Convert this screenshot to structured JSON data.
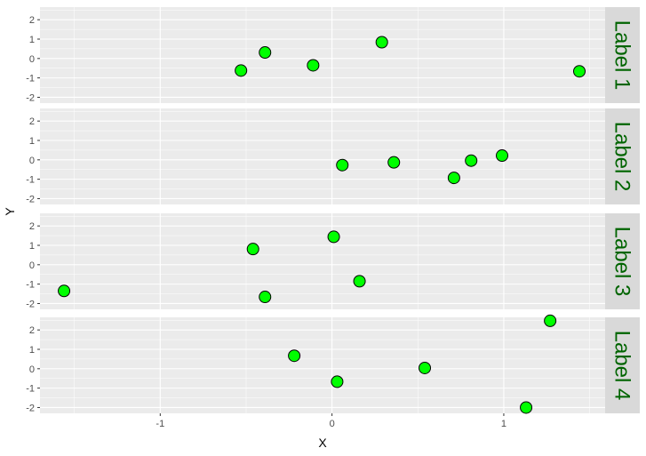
{
  "chart_data": {
    "type": "scatter",
    "xlabel": "X",
    "ylabel": "Y",
    "xlim": [
      -1.7,
      1.59
    ],
    "ylim": [
      -2.3,
      2.65
    ],
    "xticks": [
      -1,
      0,
      1
    ],
    "yticks": [
      -2,
      -1,
      0,
      1,
      2
    ],
    "grid": true,
    "point_fill": "#00FF00",
    "point_stroke": "#000000",
    "panel_bg": "#EBEBEB",
    "strip_bg": "#D9D9D9",
    "strip_text_color": "#006400",
    "facets": [
      {
        "label": "Label 1",
        "points": [
          [
            -0.53,
            -0.62
          ],
          [
            -0.39,
            0.31
          ],
          [
            -0.11,
            -0.35
          ],
          [
            0.29,
            0.84
          ],
          [
            1.44,
            -0.66
          ]
        ]
      },
      {
        "label": "Label 2",
        "points": [
          [
            0.06,
            -0.27
          ],
          [
            0.36,
            -0.13
          ],
          [
            0.81,
            -0.04
          ],
          [
            0.71,
            -0.93
          ],
          [
            0.99,
            0.22
          ]
        ]
      },
      {
        "label": "Label 3",
        "points": [
          [
            -1.56,
            -1.35
          ],
          [
            -0.46,
            0.81
          ],
          [
            0.01,
            1.44
          ],
          [
            -0.39,
            -1.66
          ],
          [
            0.16,
            -0.85
          ]
        ]
      },
      {
        "label": "Label 4",
        "points": [
          [
            -0.22,
            0.67
          ],
          [
            0.03,
            -0.67
          ],
          [
            0.54,
            0.04
          ],
          [
            1.27,
            2.47
          ],
          [
            1.13,
            -2.0
          ]
        ]
      }
    ]
  }
}
